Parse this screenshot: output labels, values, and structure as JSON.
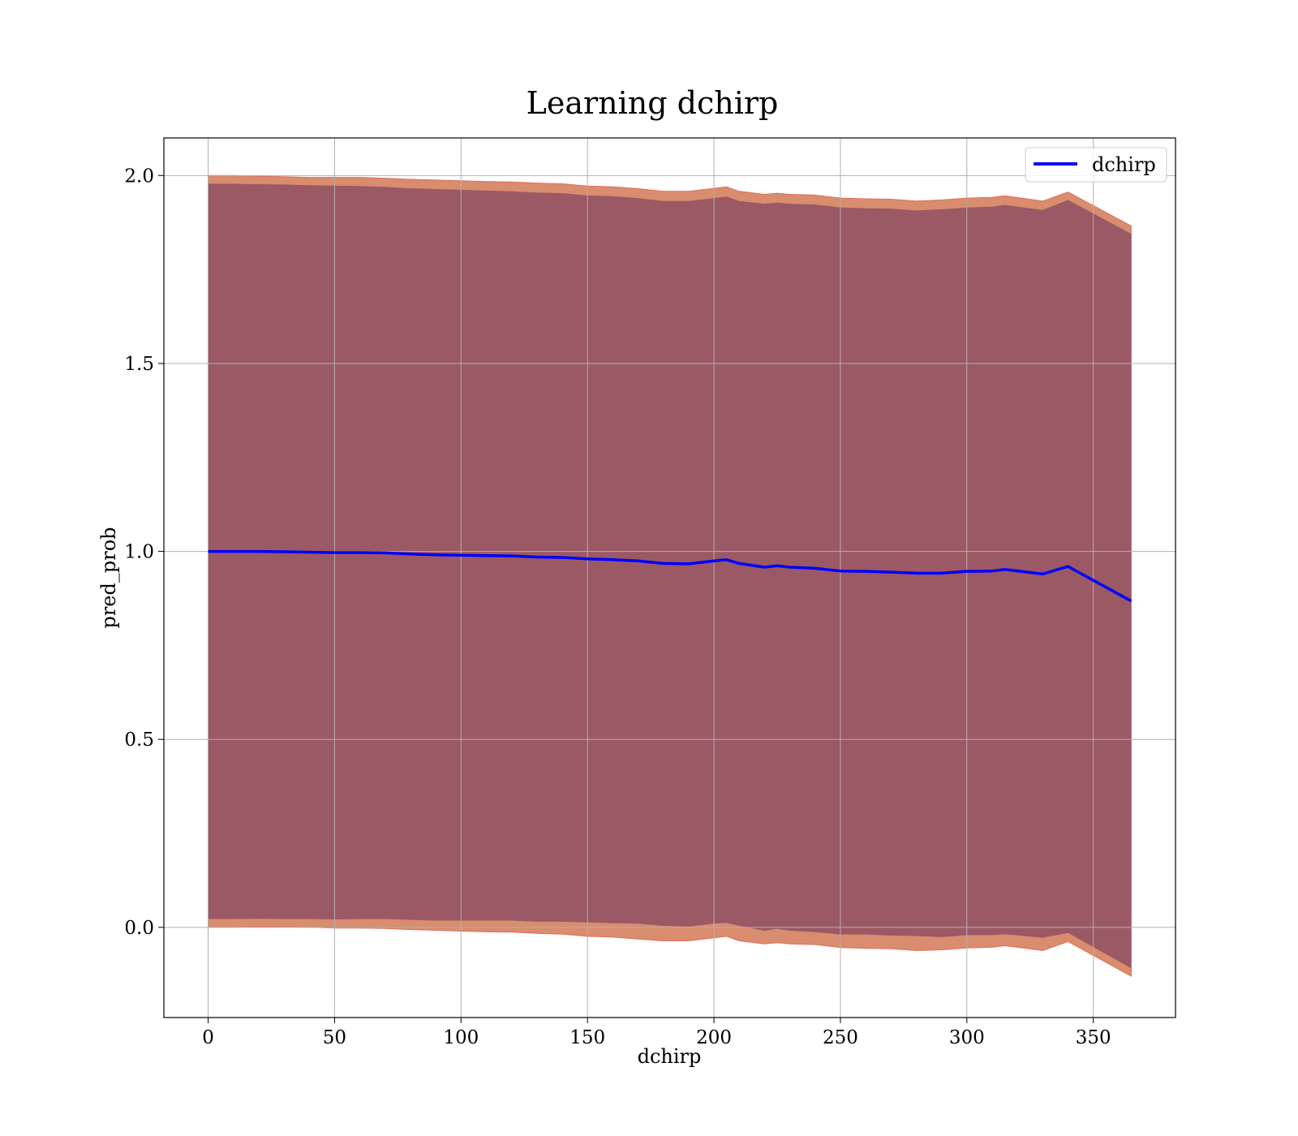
{
  "chart_data": {
    "type": "line",
    "title": "Learning dchirp",
    "xlabel": "dchirp",
    "ylabel": "pred_prob",
    "xlim": [
      -17.5,
      382.5
    ],
    "ylim": [
      -0.24,
      2.1
    ],
    "xticks": [
      0,
      50,
      100,
      150,
      200,
      250,
      300,
      350
    ],
    "xtick_labels": [
      "0",
      "50",
      "100",
      "150",
      "200",
      "250",
      "300",
      "350"
    ],
    "yticks": [
      0.0,
      0.5,
      1.0,
      1.5,
      2.0
    ],
    "ytick_labels": [
      "0.0",
      "0.5",
      "1.0",
      "1.5",
      "2.0"
    ],
    "grid": true,
    "legend_position": "top-right",
    "colors": {
      "line": "#0000ff",
      "outer_band": "#d98c6e",
      "inner_band": "#8b4c63",
      "grid": "#b0b0b0"
    },
    "series": [
      {
        "name": "dchirp",
        "x": [
          0,
          10,
          20,
          30,
          40,
          50,
          60,
          70,
          80,
          90,
          100,
          110,
          120,
          130,
          140,
          150,
          160,
          170,
          180,
          190,
          200,
          205,
          210,
          220,
          225,
          230,
          240,
          250,
          260,
          270,
          280,
          290,
          300,
          310,
          315,
          330,
          340,
          365
        ],
        "y": [
          1.0,
          1.0,
          1.0,
          0.999,
          0.998,
          0.997,
          0.997,
          0.996,
          0.993,
          0.991,
          0.99,
          0.989,
          0.988,
          0.985,
          0.984,
          0.98,
          0.978,
          0.975,
          0.968,
          0.967,
          0.975,
          0.978,
          0.968,
          0.958,
          0.962,
          0.958,
          0.955,
          0.948,
          0.947,
          0.945,
          0.942,
          0.942,
          0.947,
          0.948,
          0.952,
          0.94,
          0.96,
          0.868
        ]
      }
    ],
    "bands": {
      "outer_upper": [
        2.0,
        2.0,
        1.998,
        1.997,
        1.995,
        1.995,
        1.995,
        1.993,
        1.99,
        1.988,
        1.986,
        1.984,
        1.983,
        1.98,
        1.978,
        1.972,
        1.97,
        1.965,
        1.958,
        1.958,
        1.966,
        1.97,
        1.958,
        1.95,
        1.953,
        1.95,
        1.948,
        1.94,
        1.938,
        1.937,
        1.932,
        1.935,
        1.94,
        1.942,
        1.946,
        1.932,
        1.956,
        1.866
      ],
      "outer_lower": [
        0.0,
        0.0,
        0.002,
        0.001,
        0.0,
        -0.002,
        -0.002,
        -0.003,
        -0.006,
        -0.008,
        -0.01,
        -0.012,
        -0.013,
        -0.016,
        -0.018,
        -0.024,
        -0.026,
        -0.031,
        -0.036,
        -0.036,
        -0.028,
        -0.024,
        -0.036,
        -0.044,
        -0.041,
        -0.044,
        -0.046,
        -0.054,
        -0.056,
        -0.057,
        -0.062,
        -0.06,
        -0.055,
        -0.053,
        -0.049,
        -0.062,
        -0.038,
        -0.13
      ],
      "inner_upper": [
        1.978,
        1.978,
        1.977,
        1.976,
        1.974,
        1.973,
        1.972,
        1.97,
        1.966,
        1.964,
        1.962,
        1.96,
        1.958,
        1.955,
        1.953,
        1.947,
        1.945,
        1.94,
        1.932,
        1.932,
        1.94,
        1.944,
        1.932,
        1.925,
        1.928,
        1.925,
        1.923,
        1.915,
        1.913,
        1.912,
        1.907,
        1.91,
        1.915,
        1.917,
        1.922,
        1.908,
        1.935,
        1.845
      ],
      "inner_lower": [
        0.022,
        0.022,
        0.023,
        0.022,
        0.022,
        0.021,
        0.022,
        0.022,
        0.02,
        0.018,
        0.018,
        0.018,
        0.018,
        0.015,
        0.015,
        0.013,
        0.011,
        0.01,
        0.004,
        0.002,
        0.01,
        0.012,
        0.004,
        -0.009,
        -0.004,
        -0.009,
        -0.013,
        -0.019,
        -0.019,
        -0.022,
        -0.023,
        -0.026,
        -0.021,
        -0.021,
        -0.018,
        -0.028,
        -0.015,
        -0.109
      ]
    }
  }
}
